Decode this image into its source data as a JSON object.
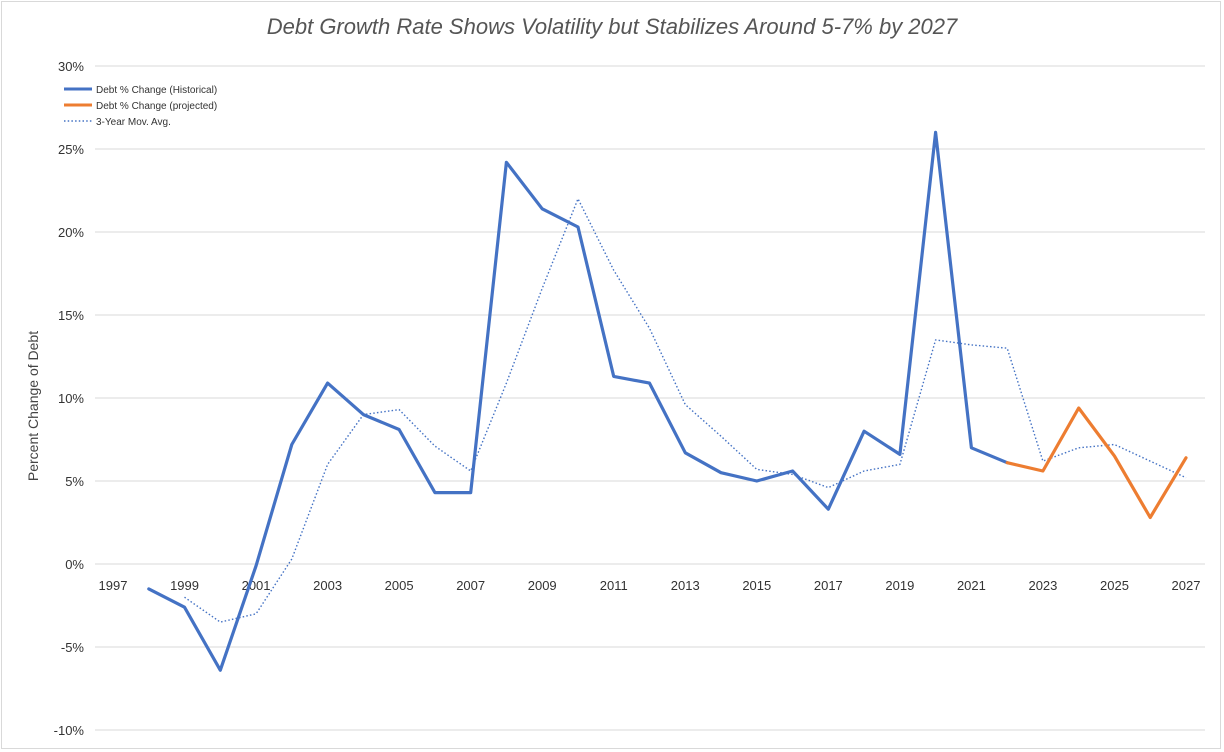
{
  "chart_data": {
    "type": "line",
    "title": "Debt Growth Rate Shows Volatility but Stabilizes Around 5-7% by 2027",
    "ylabel": "Percent Change of Debt",
    "xlabel": "",
    "ylim": [
      -10,
      30
    ],
    "xlim": [
      1997,
      2027
    ],
    "y_ticks": [
      "30%",
      "25%",
      "20%",
      "15%",
      "10%",
      "5%",
      "0%",
      "-5%",
      "-10%"
    ],
    "y_tick_values": [
      30,
      25,
      20,
      15,
      10,
      5,
      0,
      -5,
      -10
    ],
    "x_ticks": [
      "1997",
      "1999",
      "2001",
      "2003",
      "2005",
      "2007",
      "2009",
      "2011",
      "2013",
      "2015",
      "2017",
      "2019",
      "2021",
      "2023",
      "2025",
      "2027"
    ],
    "x_tick_values": [
      1997,
      1999,
      2001,
      2003,
      2005,
      2007,
      2009,
      2011,
      2013,
      2015,
      2017,
      2019,
      2021,
      2023,
      2025,
      2027
    ],
    "grid": true,
    "legend_position": "top-left",
    "series": [
      {
        "name": "Debt % Change (Historical)",
        "color": "#4472c4",
        "style": "solid",
        "x": [
          1998,
          1999,
          2000,
          2001,
          2002,
          2003,
          2004,
          2005,
          2006,
          2007,
          2008,
          2009,
          2010,
          2011,
          2012,
          2013,
          2014,
          2015,
          2016,
          2017,
          2018,
          2019,
          2020,
          2021,
          2022
        ],
        "y": [
          -1.5,
          -2.6,
          -6.4,
          -0.1,
          7.2,
          10.9,
          9.0,
          8.1,
          4.3,
          4.3,
          24.2,
          21.4,
          20.3,
          11.3,
          10.9,
          6.7,
          5.5,
          5.0,
          5.6,
          3.3,
          8.0,
          6.6,
          26.0,
          7.0,
          6.1
        ]
      },
      {
        "name": "Debt % Change (projected)",
        "color": "#ed7d31",
        "style": "solid",
        "x": [
          2022,
          2023,
          2024,
          2025,
          2026,
          2027
        ],
        "y": [
          6.1,
          5.6,
          9.4,
          6.5,
          2.8,
          6.4
        ]
      },
      {
        "name": "3-Year Mov. Avg.",
        "color": "#4472c4",
        "style": "dotted",
        "x": [
          1999,
          2000,
          2001,
          2002,
          2003,
          2004,
          2005,
          2006,
          2007,
          2008,
          2009,
          2010,
          2011,
          2012,
          2013,
          2014,
          2015,
          2016,
          2017,
          2018,
          2019,
          2020,
          2021,
          2022,
          2023,
          2024,
          2025,
          2026,
          2027
        ],
        "y": [
          -2.0,
          -3.5,
          -3.0,
          0.3,
          6.0,
          9.0,
          9.3,
          7.1,
          5.6,
          10.9,
          16.6,
          22.0,
          17.7,
          14.2,
          9.6,
          7.7,
          5.7,
          5.4,
          4.6,
          5.6,
          6.0,
          13.5,
          13.2,
          13.0,
          6.2,
          7.0,
          7.2,
          6.2,
          5.2
        ]
      }
    ]
  }
}
